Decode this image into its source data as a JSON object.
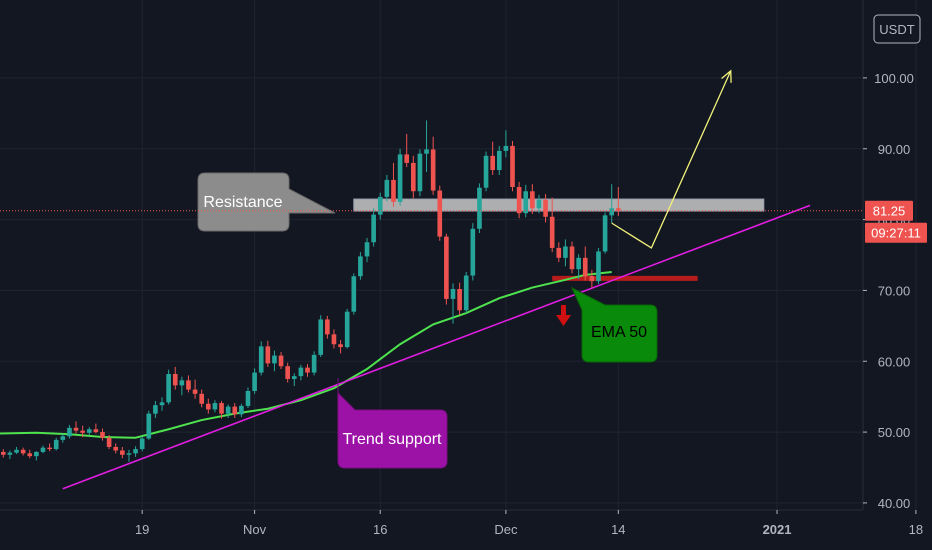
{
  "currency_badge": "USDT",
  "current_price": {
    "label": "81.25",
    "value": 81.25,
    "countdown": "09:27:11"
  },
  "colors": {
    "background": "#131722",
    "grid": "#1f2430",
    "up": "#26a69a",
    "down": "#ef5350",
    "ema": "#4ee34e",
    "trend": "#e01de0",
    "projection": "#f2f27a",
    "resistance_fill": "#c9c9c9",
    "support_zone": "#b71c1c",
    "current_price_tag": "#ef5350",
    "callout_grey": "#8c8c8c",
    "callout_purple": "#9c12a6",
    "callout_green": "#0a8a0a"
  },
  "chart_data": {
    "type": "candlestick",
    "price_ticks": [
      {
        "label": "40.00",
        "value": 40
      },
      {
        "label": "50.00",
        "value": 50
      },
      {
        "label": "60.00",
        "value": 60
      },
      {
        "label": "70.00",
        "value": 70
      },
      {
        "label": "80.00",
        "value": 80
      },
      {
        "label": "90.00",
        "value": 90
      },
      {
        "label": "100.00",
        "value": 100
      }
    ],
    "ylim": [
      39,
      111
    ],
    "xlim": [
      -0.5,
      130
    ],
    "time_ticks": [
      {
        "label": "19",
        "index": 21
      },
      {
        "label": "Nov",
        "index": 38
      },
      {
        "label": "16",
        "index": 57
      },
      {
        "label": "Dec",
        "index": 76
      },
      {
        "label": "14",
        "index": 93
      },
      {
        "label": "2021",
        "index": 117
      },
      {
        "label": "18",
        "index": 138
      }
    ],
    "candles": [
      [
        47.2,
        47.6,
        46.4,
        46.8
      ],
      [
        46.8,
        47.4,
        46.2,
        47.1
      ],
      [
        47.1,
        47.9,
        46.9,
        47.5
      ],
      [
        47.5,
        47.8,
        46.7,
        47.0
      ],
      [
        47.0,
        47.5,
        46.3,
        46.6
      ],
      [
        46.6,
        47.3,
        46.0,
        47.2
      ],
      [
        47.2,
        48.1,
        47.0,
        47.8
      ],
      [
        47.8,
        48.4,
        47.3,
        47.6
      ],
      [
        47.6,
        49.2,
        47.4,
        48.9
      ],
      [
        48.9,
        49.8,
        48.5,
        49.4
      ],
      [
        49.4,
        51.0,
        49.1,
        50.6
      ],
      [
        50.6,
        51.5,
        49.8,
        50.2
      ],
      [
        50.2,
        50.9,
        49.3,
        49.9
      ],
      [
        49.9,
        50.7,
        49.5,
        50.4
      ],
      [
        50.4,
        51.2,
        49.8,
        50.0
      ],
      [
        50.0,
        50.5,
        48.8,
        49.2
      ],
      [
        49.2,
        49.6,
        47.6,
        47.9
      ],
      [
        47.9,
        48.4,
        47.0,
        47.4
      ],
      [
        47.4,
        47.9,
        46.3,
        46.8
      ],
      [
        46.8,
        47.5,
        45.8,
        47.0
      ],
      [
        47.0,
        48.0,
        46.5,
        47.6
      ],
      [
        47.6,
        49.4,
        47.3,
        49.1
      ],
      [
        49.1,
        53.0,
        48.9,
        52.6
      ],
      [
        52.6,
        54.4,
        52.0,
        53.8
      ],
      [
        53.8,
        54.9,
        53.0,
        54.2
      ],
      [
        54.2,
        58.8,
        53.9,
        58.2
      ],
      [
        58.2,
        59.2,
        56.0,
        56.6
      ],
      [
        56.6,
        57.8,
        55.2,
        57.3
      ],
      [
        57.3,
        58.0,
        55.6,
        56.0
      ],
      [
        56.0,
        57.4,
        54.7,
        55.4
      ],
      [
        55.4,
        56.0,
        53.5,
        54.0
      ],
      [
        54.0,
        54.7,
        52.6,
        53.2
      ],
      [
        53.2,
        54.5,
        52.8,
        54.1
      ],
      [
        54.1,
        54.4,
        51.9,
        52.6
      ],
      [
        52.6,
        53.9,
        52.0,
        53.6
      ],
      [
        53.6,
        54.1,
        52.0,
        52.5
      ],
      [
        52.5,
        54.0,
        52.1,
        53.7
      ],
      [
        53.7,
        56.3,
        53.4,
        55.8
      ],
      [
        55.8,
        59.0,
        55.4,
        58.4
      ],
      [
        58.4,
        62.8,
        58.0,
        62.1
      ],
      [
        62.1,
        62.9,
        59.2,
        59.7
      ],
      [
        59.7,
        61.5,
        58.6,
        60.8
      ],
      [
        60.8,
        61.3,
        58.9,
        59.3
      ],
      [
        59.3,
        59.8,
        57.0,
        57.5
      ],
      [
        57.5,
        58.3,
        56.5,
        57.9
      ],
      [
        57.9,
        59.5,
        57.3,
        59.1
      ],
      [
        59.1,
        59.6,
        57.8,
        58.4
      ],
      [
        58.4,
        61.4,
        58.0,
        60.9
      ],
      [
        60.9,
        66.5,
        60.6,
        65.9
      ],
      [
        65.9,
        66.4,
        63.2,
        63.8
      ],
      [
        63.8,
        64.5,
        61.8,
        62.4
      ],
      [
        62.4,
        63.0,
        61.1,
        62.0
      ],
      [
        62.0,
        67.4,
        61.8,
        67.0
      ],
      [
        67.0,
        72.4,
        66.6,
        72.0
      ],
      [
        72.0,
        75.4,
        71.5,
        74.8
      ],
      [
        74.8,
        77.4,
        74.0,
        76.8
      ],
      [
        76.8,
        81.6,
        76.2,
        80.7
      ],
      [
        80.7,
        83.8,
        80.0,
        83.2
      ],
      [
        83.2,
        86.3,
        82.6,
        85.6
      ],
      [
        85.6,
        88.0,
        81.8,
        82.5
      ],
      [
        82.5,
        90.0,
        82.0,
        89.2
      ],
      [
        89.2,
        92.1,
        87.4,
        88.0
      ],
      [
        88.0,
        89.0,
        83.0,
        84.0
      ],
      [
        84.0,
        89.9,
        83.3,
        89.3
      ],
      [
        89.3,
        94.0,
        86.7,
        89.9
      ],
      [
        89.9,
        91.7,
        83.5,
        84.1
      ],
      [
        84.1,
        84.8,
        77.0,
        77.6
      ],
      [
        77.6,
        78.0,
        68.0,
        68.8
      ],
      [
        68.8,
        71.0,
        65.3,
        70.2
      ],
      [
        70.2,
        71.1,
        66.5,
        67.2
      ],
      [
        67.2,
        72.6,
        66.8,
        72.1
      ],
      [
        72.1,
        79.5,
        71.4,
        78.7
      ],
      [
        78.7,
        85.1,
        78.1,
        84.5
      ],
      [
        84.5,
        89.6,
        84.0,
        89.0
      ],
      [
        89.0,
        91.0,
        86.3,
        87.0
      ],
      [
        87.0,
        90.4,
        86.3,
        89.7
      ],
      [
        89.7,
        92.6,
        88.8,
        90.4
      ],
      [
        90.4,
        91.1,
        84.0,
        84.6
      ],
      [
        84.6,
        85.3,
        80.2,
        80.9
      ],
      [
        80.9,
        84.9,
        80.3,
        84.0
      ],
      [
        84.0,
        85.0,
        80.8,
        81.6
      ],
      [
        81.6,
        83.5,
        80.9,
        82.8
      ],
      [
        82.8,
        83.6,
        79.6,
        80.4
      ],
      [
        80.4,
        83.1,
        75.4,
        76.0
      ],
      [
        76.0,
        76.8,
        74.0,
        74.6
      ],
      [
        74.6,
        77.2,
        73.4,
        76.2
      ],
      [
        76.2,
        76.9,
        72.4,
        73.0
      ],
      [
        73.0,
        75.1,
        71.6,
        74.6
      ],
      [
        74.6,
        76.2,
        71.4,
        72.0
      ],
      [
        72.0,
        72.9,
        70.4,
        71.3
      ],
      [
        71.3,
        76.0,
        70.9,
        75.5
      ],
      [
        75.5,
        81.0,
        75.2,
        80.6
      ],
      [
        80.6,
        85.0,
        79.5,
        81.6
      ],
      [
        81.6,
        84.6,
        80.5,
        81.25
      ]
    ],
    "ema50": [
      [
        -0.5,
        49.8
      ],
      [
        5,
        49.9
      ],
      [
        10,
        49.7
      ],
      [
        15,
        49.3
      ],
      [
        20,
        49.2
      ],
      [
        25,
        50.4
      ],
      [
        30,
        51.7
      ],
      [
        35,
        52.6
      ],
      [
        40,
        53.3
      ],
      [
        45,
        54.5
      ],
      [
        50,
        56.2
      ],
      [
        55,
        58.9
      ],
      [
        60,
        62.4
      ],
      [
        65,
        65.2
      ],
      [
        70,
        66.8
      ],
      [
        75,
        68.9
      ],
      [
        80,
        70.4
      ],
      [
        85,
        71.5
      ],
      [
        88,
        72.2
      ],
      [
        92,
        72.6
      ]
    ],
    "trend_support": [
      [
        9,
        42
      ],
      [
        122,
        82
      ]
    ],
    "projection": [
      [
        92,
        79.5
      ],
      [
        98,
        76
      ],
      [
        110,
        101
      ]
    ],
    "resistance_zone": {
      "x0": 53,
      "x1": 115,
      "top": 82.9,
      "bottom": 81.2
    },
    "support_zone": {
      "x0": 83,
      "x1": 105,
      "value": 71.7
    },
    "annotations": [
      {
        "text": "Resistance",
        "color_key": "callout_grey",
        "text_color": "#ffffff"
      },
      {
        "text": "Trend support",
        "color_key": "callout_purple",
        "text_color": "#ffffff"
      },
      {
        "text": "EMA 50",
        "color_key": "callout_green",
        "text_color": "#000000"
      }
    ]
  }
}
